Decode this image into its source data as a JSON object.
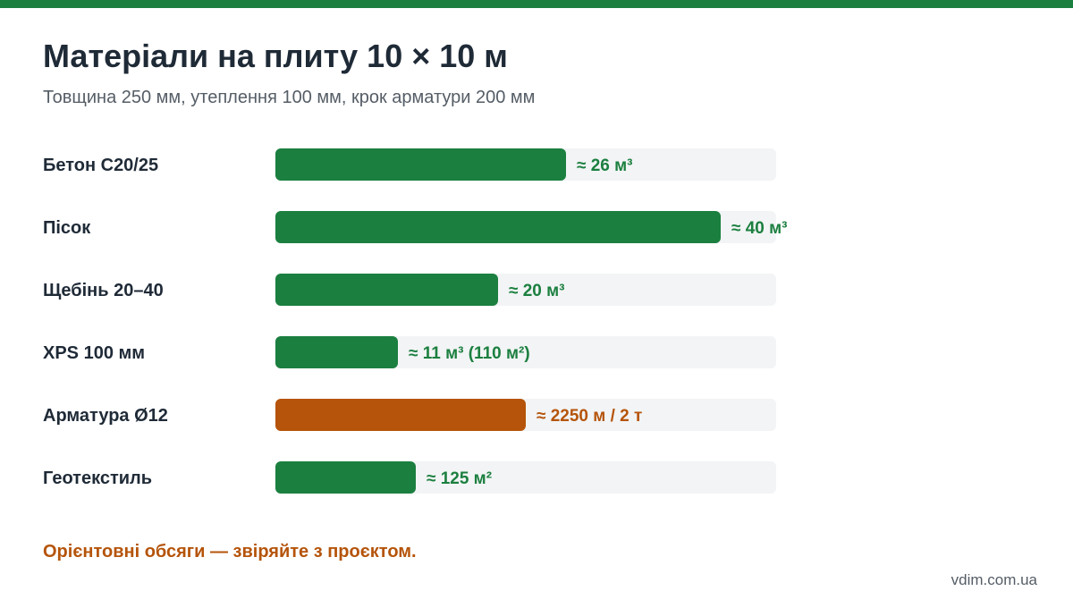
{
  "colors": {
    "accent": "#1b7f3f",
    "highlight": "#b5540a",
    "track": "#f2f4f5",
    "title": "#1f2a37",
    "muted": "#555d66"
  },
  "header": {
    "title": "Матеріали на плиту 10 × 10 м",
    "subtitle": "Товщина 250 мм, утеплення 100 мм, крок арматури 200 мм"
  },
  "chart_data": {
    "type": "bar",
    "orientation": "horizontal",
    "categories": [
      "Бетон C20/25",
      "Пісок",
      "Щебінь 20–40",
      "XPS 100 мм",
      "Арматура Ø12",
      "Геотекстиль"
    ],
    "values": [
      26,
      40,
      20,
      11,
      2250,
      125
    ],
    "bar_fractions": [
      0.58,
      0.89,
      0.445,
      0.245,
      0.5,
      0.28
    ],
    "data_labels": [
      "≈ 26 м³",
      "≈ 40 м³",
      "≈ 20 м³",
      "≈ 11 м³ (110 м²)",
      "≈ 2250 м / 2 т",
      "≈ 125 м²"
    ],
    "highlighted": [
      false,
      false,
      false,
      false,
      true,
      false
    ],
    "grid": false,
    "legend": "none"
  },
  "footer": {
    "note": "Орієнтовні обсяги — звіряйте з проєктом.",
    "site": "vdim.com.ua"
  }
}
